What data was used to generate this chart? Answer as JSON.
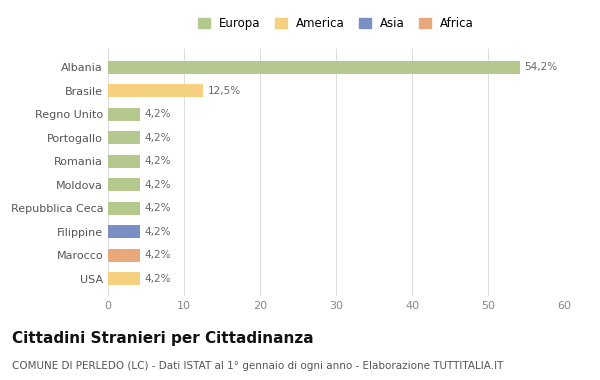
{
  "categories": [
    "USA",
    "Marocco",
    "Filippine",
    "Repubblica Ceca",
    "Moldova",
    "Romania",
    "Portogallo",
    "Regno Unito",
    "Brasile",
    "Albania"
  ],
  "values": [
    4.2,
    4.2,
    4.2,
    4.2,
    4.2,
    4.2,
    4.2,
    4.2,
    12.5,
    54.2
  ],
  "labels": [
    "4,2%",
    "4,2%",
    "4,2%",
    "4,2%",
    "4,2%",
    "4,2%",
    "4,2%",
    "4,2%",
    "12,5%",
    "54,2%"
  ],
  "bar_colors": [
    "#f5d080",
    "#e8a87c",
    "#7b8fc4",
    "#b5c98e",
    "#b5c98e",
    "#b5c98e",
    "#b5c98e",
    "#b5c98e",
    "#f5d080",
    "#b5c98e"
  ],
  "legend_labels": [
    "Europa",
    "America",
    "Asia",
    "Africa"
  ],
  "legend_colors": [
    "#b5c98e",
    "#f5d080",
    "#7b8fc4",
    "#e8a87c"
  ],
  "title": "Cittadini Stranieri per Cittadinanza",
  "subtitle": "COMUNE DI PERLEDO (LC) - Dati ISTAT al 1° gennaio di ogni anno - Elaborazione TUTTITALIA.IT",
  "xlim": [
    0,
    60
  ],
  "xticks": [
    0,
    10,
    20,
    30,
    40,
    50,
    60
  ],
  "background_color": "#ffffff",
  "grid_color": "#dddddd",
  "bar_height": 0.55,
  "title_fontsize": 11,
  "subtitle_fontsize": 7.5,
  "label_fontsize": 7.5,
  "tick_fontsize": 8,
  "legend_fontsize": 8.5
}
